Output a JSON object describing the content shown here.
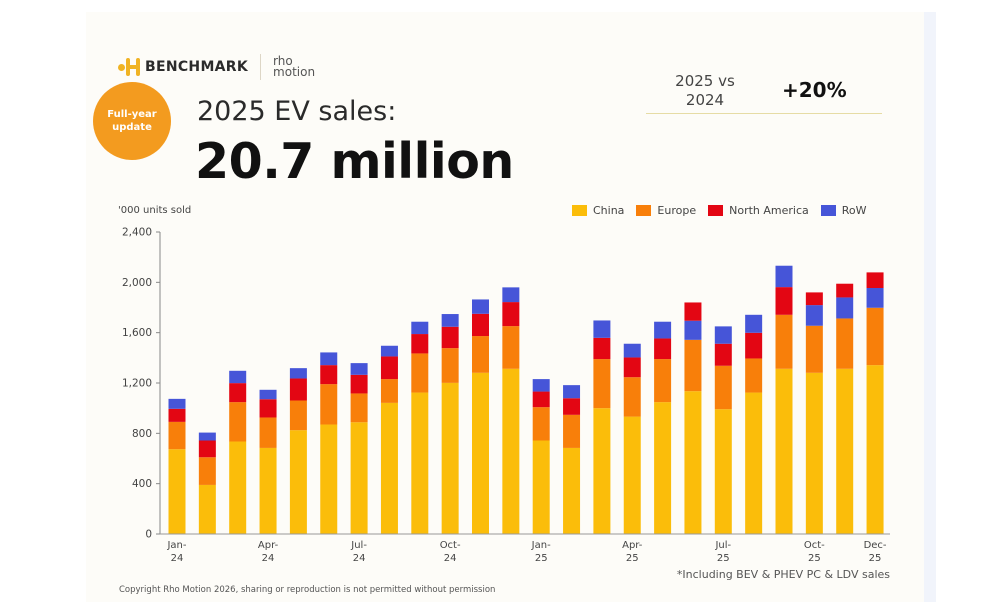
{
  "branding": {
    "benchmark": "BENCHMARK",
    "rho_line1": "rho",
    "rho_line2": "motion"
  },
  "badge": {
    "line1": "Full-year",
    "line2": "update"
  },
  "header": {
    "subtitle": "2025 EV sales:",
    "title": "20.7 million"
  },
  "comparison": {
    "label_line1": "2025 vs",
    "label_line2": "2024",
    "value": "+20%"
  },
  "footnote": "*Including BEV & PHEV PC & LDV sales",
  "copyright": "Copyright Rho Motion 2026, sharing or reproduction is not permitted without permission",
  "chart_data": {
    "type": "bar",
    "stacked": true,
    "ylabel": "'000 units sold",
    "ylim": [
      0,
      2400
    ],
    "yticks": [
      0,
      400,
      800,
      1200,
      1600,
      2000,
      2400
    ],
    "ytick_labels": [
      "0",
      "400",
      "800",
      "1,200",
      "1,600",
      "2,000",
      "2,400"
    ],
    "legend_placement": "top-right",
    "grid": false,
    "categories": [
      "Jan-24",
      "Feb-24",
      "Mar-24",
      "Apr-24",
      "May-24",
      "Jun-24",
      "Jul-24",
      "Aug-24",
      "Sep-24",
      "Oct-24",
      "Nov-24",
      "Dec-24",
      "Jan-25",
      "Feb-25",
      "Mar-25",
      "Apr-25",
      "May-25",
      "Jun-25",
      "Jul-25",
      "Aug-25",
      "Sep-25",
      "Oct-25",
      "Nov-25",
      "Dec-25"
    ],
    "xtick_labels": [
      {
        "category": "Jan-24",
        "line1": "Jan-",
        "line2": "24"
      },
      {
        "category": "Apr-24",
        "line1": "Apr-",
        "line2": "24"
      },
      {
        "category": "Jul-24",
        "line1": "Jul-",
        "line2": "24"
      },
      {
        "category": "Oct-24",
        "line1": "Oct-",
        "line2": "24"
      },
      {
        "category": "Jan-25",
        "line1": "Jan-",
        "line2": "25"
      },
      {
        "category": "Apr-25",
        "line1": "Apr-",
        "line2": "25"
      },
      {
        "category": "Jul-25",
        "line1": "Jul-",
        "line2": "25"
      },
      {
        "category": "Oct-25",
        "line1": "Oct-",
        "line2": "25"
      },
      {
        "category": "Dec-25",
        "line1": "Dec-",
        "line2": "25"
      }
    ],
    "series": [
      {
        "name": "China",
        "color": "#fbbd0a",
        "values": [
          674,
          390,
          735,
          684,
          825,
          870,
          888,
          1042,
          1124,
          1201,
          1281,
          1313,
          743,
          684,
          1000,
          933,
          1048,
          1135,
          992,
          1124,
          1313,
          1281,
          1313,
          1342
        ]
      },
      {
        "name": "Europe",
        "color": "#f87f0a",
        "values": [
          217,
          220,
          313,
          242,
          236,
          321,
          229,
          189,
          311,
          276,
          292,
          339,
          265,
          263,
          390,
          313,
          342,
          408,
          345,
          271,
          429,
          374,
          400,
          456
        ]
      },
      {
        "name": "North America",
        "color": "#e30613",
        "values": [
          104,
          133,
          151,
          145,
          175,
          151,
          148,
          180,
          154,
          170,
          177,
          191,
          124,
          132,
          169,
          157,
          164,
          145,
          175,
          204,
          220,
          101,
          109,
          124
        ]
      },
      {
        "name": "RoW",
        "color": "#4655d8",
        "values": [
          79,
          63,
          98,
          75,
          82,
          101,
          93,
          85,
          98,
          101,
          114,
          117,
          99,
          104,
          138,
          109,
          133,
          152,
          138,
          143,
          170,
          164,
          167,
          157
        ]
      }
    ],
    "rest_of_world_stacked_below_north_america": [
      "Jun-25",
      "Oct-25",
      "Nov-25",
      "Dec-25"
    ]
  }
}
